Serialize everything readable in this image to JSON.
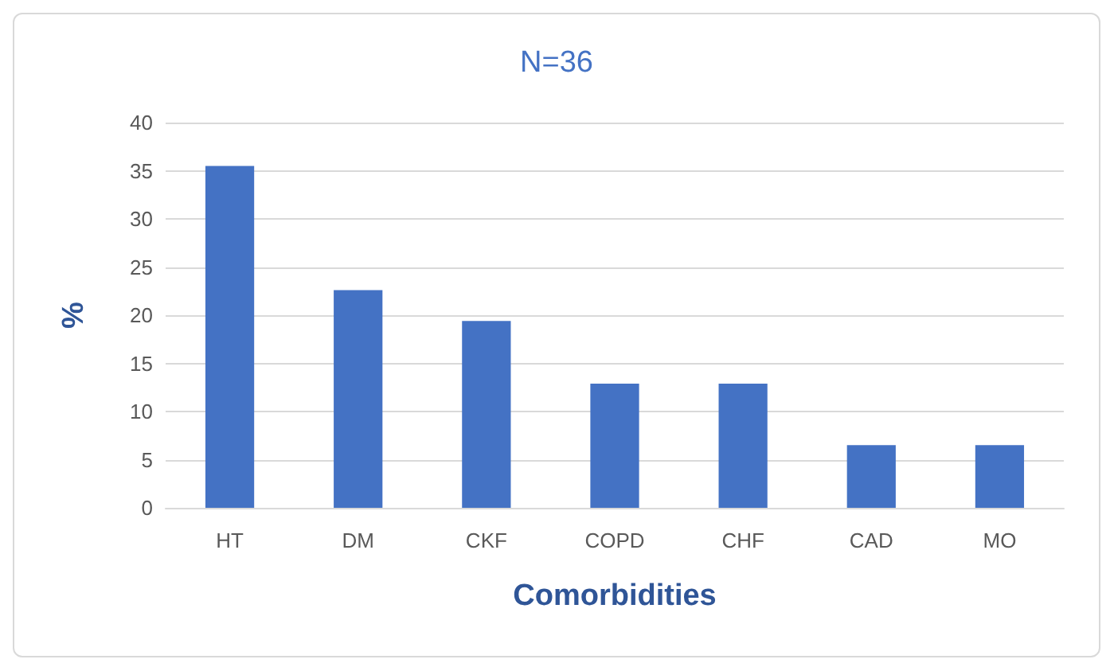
{
  "chart_data": {
    "type": "bar",
    "title": "N=36",
    "xlabel": "Comorbidities",
    "ylabel": "%",
    "categories": [
      "HT",
      "DM",
      "CKF",
      "COPD",
      "CHF",
      "CAD",
      "MO"
    ],
    "values": [
      35.5,
      22.6,
      19.4,
      12.9,
      12.9,
      6.5,
      6.5
    ],
    "color": "#4472c4",
    "ylim": [
      0,
      40
    ],
    "yticks": [
      0,
      5,
      10,
      15,
      20,
      25,
      30,
      35,
      40
    ],
    "grid": "y"
  }
}
